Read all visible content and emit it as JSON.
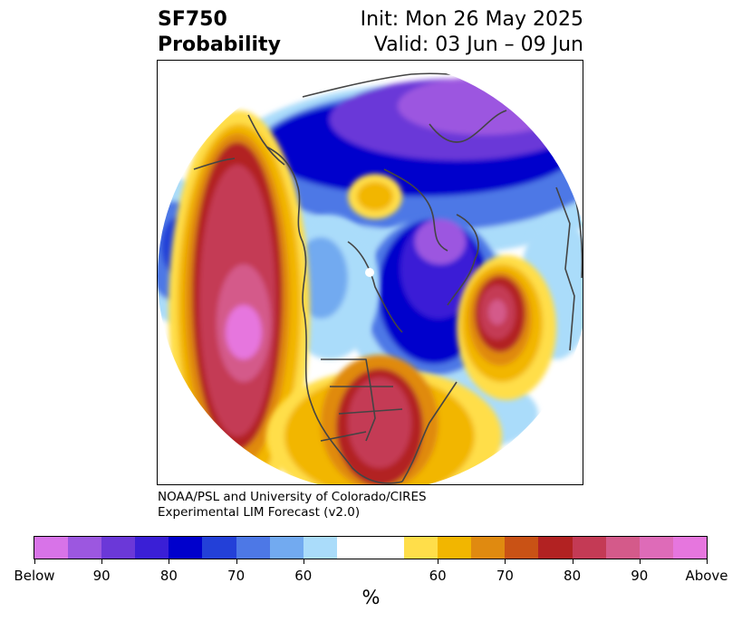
{
  "title": {
    "var_line1": "SF750",
    "var_line2": "Probability",
    "init": "Init: Mon 26 May 2025",
    "valid": "Valid: 03 Jun – 09 Jun"
  },
  "credit": {
    "line1": "NOAA/PSL and University of Colorado/CIRES",
    "line2": "Experimental LIM Forecast (v2.0)"
  },
  "colorbar": {
    "unit": "%",
    "colors": [
      "#d873e8",
      "#9c57e0",
      "#6b38d8",
      "#3a1fd6",
      "#0000cc",
      "#2340d8",
      "#4d78e6",
      "#72aaf0",
      "#aadcfa",
      "#ffffff",
      "#ffde4a",
      "#f2b600",
      "#e08a10",
      "#c95215",
      "#b22222",
      "#c43a55",
      "#d45a8a",
      "#de6bb8",
      "#e676de"
    ],
    "labels": [
      "Below",
      "90",
      "80",
      "70",
      "60",
      "60",
      "70",
      "80",
      "90",
      "Above"
    ]
  },
  "map": {
    "coast_color": "#444444",
    "colors": {
      "below_deep": "#9c57e0",
      "below_dark": "#0000cc",
      "below_mid": "#4d78e6",
      "below_light": "#aadcfa",
      "above_light": "#ffde4a",
      "above_mid": "#f2b600",
      "above_dark": "#c95215",
      "above_red": "#c43a55",
      "above_pink": "#e676de"
    }
  }
}
